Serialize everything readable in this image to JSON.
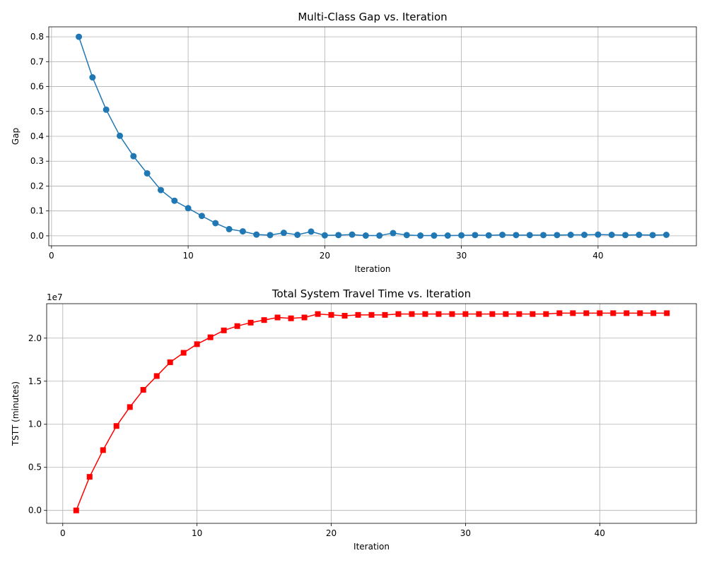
{
  "chart_data": [
    {
      "type": "line",
      "title": "Multi-Class Gap vs. Iteration",
      "xlabel": "Iteration",
      "ylabel": "Gap",
      "xlim": [
        -0.2,
        47.2
      ],
      "ylim": [
        -0.04,
        0.84
      ],
      "xticks": [
        0,
        10,
        20,
        30,
        40
      ],
      "yticks": [
        0.0,
        0.1,
        0.2,
        0.3,
        0.4,
        0.5,
        0.6,
        0.7,
        0.8
      ],
      "ytick_labels": [
        "0.0",
        "0.1",
        "0.2",
        "0.3",
        "0.4",
        "0.5",
        "0.6",
        "0.7",
        "0.8"
      ],
      "grid": true,
      "line_color": "#1f77b4",
      "marker": "circle",
      "x": [
        2,
        3,
        4,
        5,
        6,
        7,
        8,
        9,
        10,
        11,
        12,
        13,
        14,
        15,
        16,
        17,
        18,
        19,
        20,
        21,
        22,
        23,
        24,
        25,
        26,
        27,
        28,
        29,
        30,
        31,
        32,
        33,
        34,
        35,
        36,
        37,
        38,
        39,
        40,
        41,
        42,
        43,
        44,
        45
      ],
      "y": [
        0.8,
        0.637,
        0.507,
        0.402,
        0.32,
        0.251,
        0.184,
        0.141,
        0.111,
        0.08,
        0.051,
        0.027,
        0.018,
        0.005,
        0.003,
        0.012,
        0.004,
        0.017,
        0.002,
        0.003,
        0.005,
        0.001,
        0.001,
        0.011,
        0.003,
        0.001,
        0.001,
        0.001,
        0.002,
        0.003,
        0.002,
        0.004,
        0.003,
        0.003,
        0.003,
        0.003,
        0.004,
        0.004,
        0.005,
        0.004,
        0.003,
        0.004,
        0.003,
        0.004
      ]
    },
    {
      "type": "line",
      "title": "Total System Travel Time vs. Iteration",
      "xlabel": "Iteration",
      "ylabel": "TSTT (minutes)",
      "scale_label": "1e7",
      "xlim": [
        -1.2,
        47.2
      ],
      "ylim": [
        -0.15,
        2.4
      ],
      "y_scale": 10000000,
      "xticks": [
        0,
        10,
        20,
        30,
        40
      ],
      "yticks": [
        0.0,
        0.5,
        1.0,
        1.5,
        2.0
      ],
      "ytick_labels": [
        "0.0",
        "0.5",
        "1.0",
        "1.5",
        "2.0"
      ],
      "grid": true,
      "line_color": "#ff0000",
      "marker": "square",
      "x": [
        1,
        2,
        3,
        4,
        5,
        6,
        7,
        8,
        9,
        10,
        11,
        12,
        13,
        14,
        15,
        16,
        17,
        18,
        19,
        20,
        21,
        22,
        23,
        24,
        25,
        26,
        27,
        28,
        29,
        30,
        31,
        32,
        33,
        34,
        35,
        36,
        37,
        38,
        39,
        40,
        41,
        42,
        43,
        44,
        45
      ],
      "y": [
        0.0,
        0.39,
        0.7,
        0.98,
        1.2,
        1.4,
        1.56,
        1.72,
        1.83,
        1.93,
        2.01,
        2.09,
        2.14,
        2.18,
        2.21,
        2.24,
        2.23,
        2.24,
        2.28,
        2.27,
        2.26,
        2.27,
        2.27,
        2.27,
        2.28,
        2.28,
        2.28,
        2.28,
        2.28,
        2.28,
        2.28,
        2.28,
        2.28,
        2.28,
        2.28,
        2.28,
        2.29,
        2.29,
        2.29,
        2.29,
        2.29,
        2.29,
        2.29,
        2.29,
        2.29
      ]
    }
  ]
}
